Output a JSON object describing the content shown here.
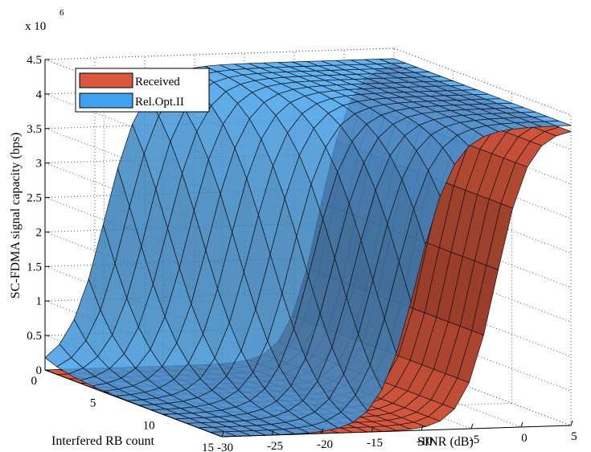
{
  "chart_data": {
    "type": "surface",
    "title": "",
    "exponent_label": {
      "base": "x 10",
      "power": "6"
    },
    "xlabel": "SINR (dB)",
    "ylabel": "Interfered RB count",
    "zlabel": "SC-FDMA signal capacity (bps)",
    "x_ticks": [
      "-30",
      "-25",
      "-20",
      "-15",
      "-10",
      "-5",
      "0",
      "5"
    ],
    "y_ticks": [
      "0",
      "5",
      "10",
      "15"
    ],
    "z_ticks": [
      "0",
      "0.5",
      "1",
      "1.5",
      "2",
      "2.5",
      "3",
      "3.5",
      "4",
      "4.5"
    ],
    "xlim": [
      -30,
      5
    ],
    "ylim": [
      0,
      15
    ],
    "zlim": [
      0,
      4500000
    ],
    "grid": true,
    "legend": {
      "position": "top-left",
      "entries": [
        "Received",
        "Rel.Opt.II"
      ]
    },
    "series": [
      {
        "name": "Received",
        "color": "#d9583d",
        "model": "logistic",
        "max": 4300000,
        "midpoint_sinr_db": -2.5,
        "midpoint_slope_db_per_rb": 0,
        "steepness_db": 1.6
      },
      {
        "name": "Rel.Opt.II",
        "color": "#3fa2f0",
        "model": "logistic",
        "max": 4350000,
        "midpoint_sinr_db": -24.0,
        "midpoint_slope_db_per_rb": 0.9,
        "steepness_db": 1.9
      }
    ]
  }
}
